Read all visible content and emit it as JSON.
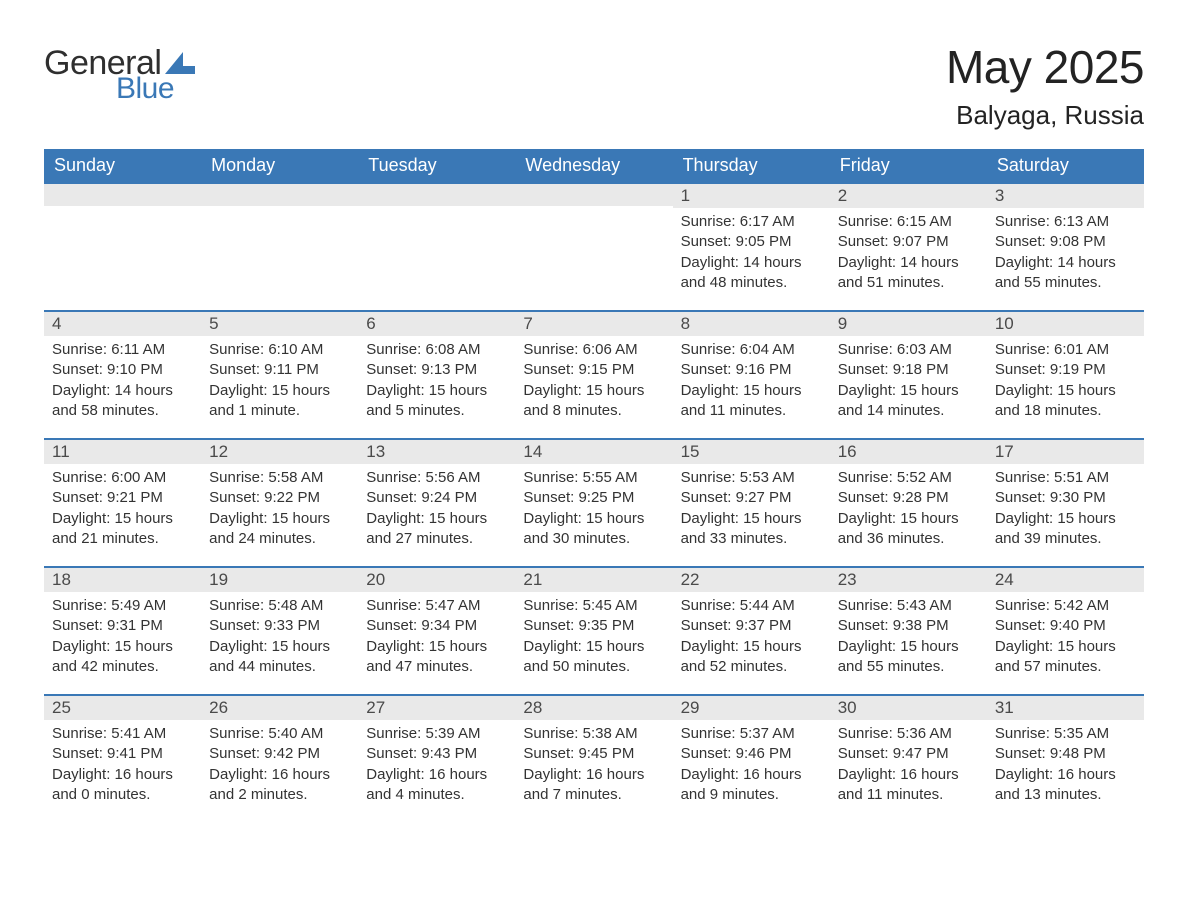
{
  "brand": {
    "part1": "General",
    "part2": "Blue",
    "accent": "#3a78b6"
  },
  "header": {
    "title": "May 2025",
    "location": "Balyaga, Russia"
  },
  "colors": {
    "header_bg": "#3a78b6",
    "header_text": "#ffffff",
    "daynum_bg": "#e9e9e9",
    "row_border": "#3a78b6",
    "body_text": "#333333",
    "page_bg": "#ffffff"
  },
  "calendar": {
    "weekdays": [
      "Sunday",
      "Monday",
      "Tuesday",
      "Wednesday",
      "Thursday",
      "Friday",
      "Saturday"
    ],
    "weeks": [
      [
        null,
        null,
        null,
        null,
        {
          "n": "1",
          "sr": "Sunrise: 6:17 AM",
          "ss": "Sunset: 9:05 PM",
          "dl": "Daylight: 14 hours and 48 minutes."
        },
        {
          "n": "2",
          "sr": "Sunrise: 6:15 AM",
          "ss": "Sunset: 9:07 PM",
          "dl": "Daylight: 14 hours and 51 minutes."
        },
        {
          "n": "3",
          "sr": "Sunrise: 6:13 AM",
          "ss": "Sunset: 9:08 PM",
          "dl": "Daylight: 14 hours and 55 minutes."
        }
      ],
      [
        {
          "n": "4",
          "sr": "Sunrise: 6:11 AM",
          "ss": "Sunset: 9:10 PM",
          "dl": "Daylight: 14 hours and 58 minutes."
        },
        {
          "n": "5",
          "sr": "Sunrise: 6:10 AM",
          "ss": "Sunset: 9:11 PM",
          "dl": "Daylight: 15 hours and 1 minute."
        },
        {
          "n": "6",
          "sr": "Sunrise: 6:08 AM",
          "ss": "Sunset: 9:13 PM",
          "dl": "Daylight: 15 hours and 5 minutes."
        },
        {
          "n": "7",
          "sr": "Sunrise: 6:06 AM",
          "ss": "Sunset: 9:15 PM",
          "dl": "Daylight: 15 hours and 8 minutes."
        },
        {
          "n": "8",
          "sr": "Sunrise: 6:04 AM",
          "ss": "Sunset: 9:16 PM",
          "dl": "Daylight: 15 hours and 11 minutes."
        },
        {
          "n": "9",
          "sr": "Sunrise: 6:03 AM",
          "ss": "Sunset: 9:18 PM",
          "dl": "Daylight: 15 hours and 14 minutes."
        },
        {
          "n": "10",
          "sr": "Sunrise: 6:01 AM",
          "ss": "Sunset: 9:19 PM",
          "dl": "Daylight: 15 hours and 18 minutes."
        }
      ],
      [
        {
          "n": "11",
          "sr": "Sunrise: 6:00 AM",
          "ss": "Sunset: 9:21 PM",
          "dl": "Daylight: 15 hours and 21 minutes."
        },
        {
          "n": "12",
          "sr": "Sunrise: 5:58 AM",
          "ss": "Sunset: 9:22 PM",
          "dl": "Daylight: 15 hours and 24 minutes."
        },
        {
          "n": "13",
          "sr": "Sunrise: 5:56 AM",
          "ss": "Sunset: 9:24 PM",
          "dl": "Daylight: 15 hours and 27 minutes."
        },
        {
          "n": "14",
          "sr": "Sunrise: 5:55 AM",
          "ss": "Sunset: 9:25 PM",
          "dl": "Daylight: 15 hours and 30 minutes."
        },
        {
          "n": "15",
          "sr": "Sunrise: 5:53 AM",
          "ss": "Sunset: 9:27 PM",
          "dl": "Daylight: 15 hours and 33 minutes."
        },
        {
          "n": "16",
          "sr": "Sunrise: 5:52 AM",
          "ss": "Sunset: 9:28 PM",
          "dl": "Daylight: 15 hours and 36 minutes."
        },
        {
          "n": "17",
          "sr": "Sunrise: 5:51 AM",
          "ss": "Sunset: 9:30 PM",
          "dl": "Daylight: 15 hours and 39 minutes."
        }
      ],
      [
        {
          "n": "18",
          "sr": "Sunrise: 5:49 AM",
          "ss": "Sunset: 9:31 PM",
          "dl": "Daylight: 15 hours and 42 minutes."
        },
        {
          "n": "19",
          "sr": "Sunrise: 5:48 AM",
          "ss": "Sunset: 9:33 PM",
          "dl": "Daylight: 15 hours and 44 minutes."
        },
        {
          "n": "20",
          "sr": "Sunrise: 5:47 AM",
          "ss": "Sunset: 9:34 PM",
          "dl": "Daylight: 15 hours and 47 minutes."
        },
        {
          "n": "21",
          "sr": "Sunrise: 5:45 AM",
          "ss": "Sunset: 9:35 PM",
          "dl": "Daylight: 15 hours and 50 minutes."
        },
        {
          "n": "22",
          "sr": "Sunrise: 5:44 AM",
          "ss": "Sunset: 9:37 PM",
          "dl": "Daylight: 15 hours and 52 minutes."
        },
        {
          "n": "23",
          "sr": "Sunrise: 5:43 AM",
          "ss": "Sunset: 9:38 PM",
          "dl": "Daylight: 15 hours and 55 minutes."
        },
        {
          "n": "24",
          "sr": "Sunrise: 5:42 AM",
          "ss": "Sunset: 9:40 PM",
          "dl": "Daylight: 15 hours and 57 minutes."
        }
      ],
      [
        {
          "n": "25",
          "sr": "Sunrise: 5:41 AM",
          "ss": "Sunset: 9:41 PM",
          "dl": "Daylight: 16 hours and 0 minutes."
        },
        {
          "n": "26",
          "sr": "Sunrise: 5:40 AM",
          "ss": "Sunset: 9:42 PM",
          "dl": "Daylight: 16 hours and 2 minutes."
        },
        {
          "n": "27",
          "sr": "Sunrise: 5:39 AM",
          "ss": "Sunset: 9:43 PM",
          "dl": "Daylight: 16 hours and 4 minutes."
        },
        {
          "n": "28",
          "sr": "Sunrise: 5:38 AM",
          "ss": "Sunset: 9:45 PM",
          "dl": "Daylight: 16 hours and 7 minutes."
        },
        {
          "n": "29",
          "sr": "Sunrise: 5:37 AM",
          "ss": "Sunset: 9:46 PM",
          "dl": "Daylight: 16 hours and 9 minutes."
        },
        {
          "n": "30",
          "sr": "Sunrise: 5:36 AM",
          "ss": "Sunset: 9:47 PM",
          "dl": "Daylight: 16 hours and 11 minutes."
        },
        {
          "n": "31",
          "sr": "Sunrise: 5:35 AM",
          "ss": "Sunset: 9:48 PM",
          "dl": "Daylight: 16 hours and 13 minutes."
        }
      ]
    ]
  }
}
